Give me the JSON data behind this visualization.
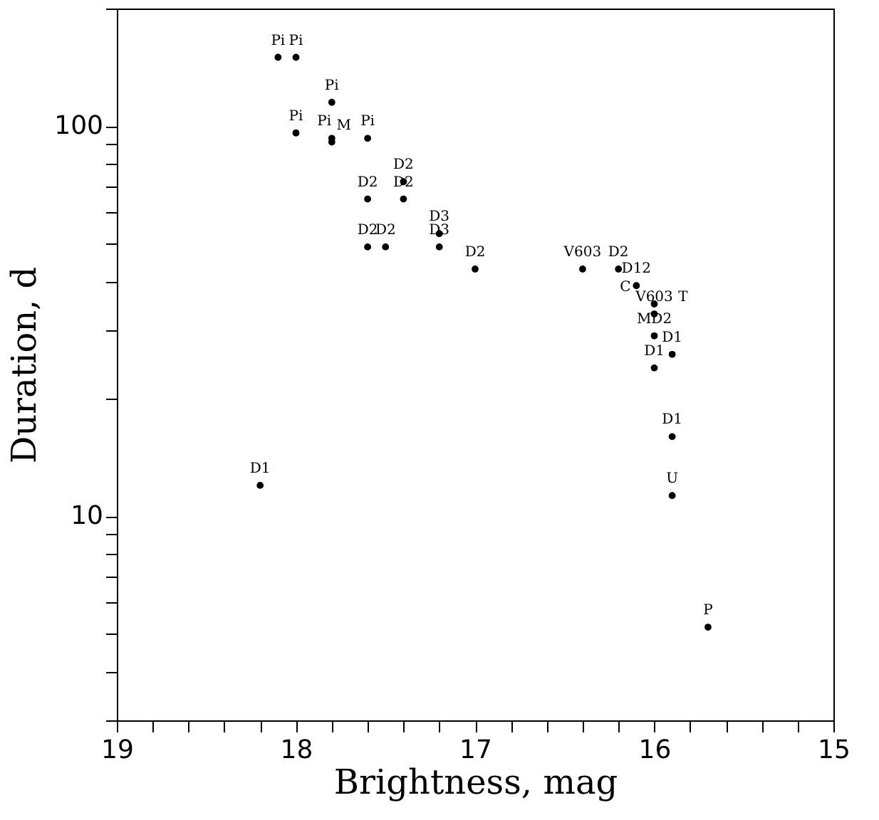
{
  "chart_data": {
    "type": "scatter",
    "xlabel": "Brightness, mag",
    "ylabel": "Duration, d",
    "x": [
      18.1,
      18.0,
      17.8,
      18.0,
      17.8,
      17.8,
      17.6,
      17.6,
      17.4,
      17.4,
      17.2,
      17.2,
      17.6,
      17.5,
      17.0,
      16.4,
      16.2,
      16.1,
      16.0,
      16.0,
      16.0,
      15.9,
      16.0,
      15.9,
      15.9,
      15.7,
      18.2
    ],
    "values": [
      150,
      150,
      115,
      96,
      93,
      91,
      93,
      65,
      72,
      65,
      53,
      49,
      49,
      49,
      43,
      43,
      43,
      39,
      35,
      33,
      29,
      26,
      24,
      16,
      11.3,
      5.2,
      12
    ],
    "annotations": [
      {
        "text": "Pi",
        "x": 18.1,
        "y": 150
      },
      {
        "text": "Pi",
        "x": 18.0,
        "y": 150
      },
      {
        "text": "Pi",
        "x": 17.8,
        "y": 115
      },
      {
        "text": "Pi",
        "x": 18.0,
        "y": 96
      },
      {
        "text": "Pi",
        "x": 17.8,
        "y": 93
      },
      {
        "text": "M",
        "x": 17.8,
        "y": 91
      },
      {
        "text": "Pi",
        "x": 17.6,
        "y": 93
      },
      {
        "text": "D2",
        "x": 17.6,
        "y": 65
      },
      {
        "text": "D2",
        "x": 17.4,
        "y": 72
      },
      {
        "text": "D2",
        "x": 17.4,
        "y": 65
      },
      {
        "text": "D3",
        "x": 17.2,
        "y": 53
      },
      {
        "text": "D3",
        "x": 17.2,
        "y": 49
      },
      {
        "text": "D2",
        "x": 17.6,
        "y": 49
      },
      {
        "text": "D2",
        "x": 17.5,
        "y": 49
      },
      {
        "text": "D2",
        "x": 17.0,
        "y": 43
      },
      {
        "text": "V603",
        "x": 16.4,
        "y": 43
      },
      {
        "text": "D2",
        "x": 16.2,
        "y": 43
      },
      {
        "text": "D12",
        "x": 16.1,
        "y": 39
      },
      {
        "text": "C",
        "x": 16.0,
        "y": 35
      },
      {
        "text": "V603",
        "x": 16.0,
        "y": 33
      },
      {
        "text": "T",
        "x": 16.0,
        "y": 33
      },
      {
        "text": "MD2",
        "x": 16.0,
        "y": 29
      },
      {
        "text": "D1",
        "x": 15.9,
        "y": 26
      },
      {
        "text": "D1",
        "x": 16.0,
        "y": 24
      },
      {
        "text": "D1",
        "x": 15.9,
        "y": 16
      },
      {
        "text": "U",
        "x": 15.9,
        "y": 11.3
      },
      {
        "text": "P",
        "x": 15.7,
        "y": 5.2
      },
      {
        "text": "D1",
        "x": 18.2,
        "y": 12
      }
    ],
    "color": "#000000",
    "marker": "circle",
    "log": "y",
    "grid": false,
    "xlim": [
      19,
      15
    ],
    "xticks": [
      19,
      {
        "value": 18.8,
        "label": null
      },
      {
        "value": 18.6,
        "label": null
      },
      {
        "value": 18.4,
        "label": null
      },
      {
        "value": 18.2,
        "label": null
      },
      18,
      {
        "value": 17.8,
        "label": null
      },
      {
        "value": 17.6,
        "label": null
      },
      {
        "value": 17.4,
        "label": null
      },
      {
        "value": 17.2,
        "label": null
      },
      17,
      {
        "value": 16.8,
        "label": null
      },
      {
        "value": 16.6,
        "label": null
      },
      {
        "value": 16.4,
        "label": null
      },
      {
        "value": 16.2,
        "label": null
      },
      16,
      {
        "value": 15.8,
        "label": null
      },
      {
        "value": 15.6,
        "label": null
      },
      {
        "value": 15.4,
        "label": null
      },
      {
        "value": 15.2,
        "label": null
      },
      15
    ],
    "ylim": [
      3,
      200
    ],
    "yticks": [
      {
        "value": 3,
        "label": null
      },
      {
        "value": 4,
        "label": null
      },
      {
        "value": 5,
        "label": null
      },
      {
        "value": 6,
        "label": null
      },
      {
        "value": 7,
        "label": null
      },
      {
        "value": 8,
        "label": null
      },
      {
        "value": 9,
        "label": null
      },
      10,
      {
        "value": 20,
        "label": null
      },
      {
        "value": 30,
        "label": null
      },
      {
        "value": 40,
        "label": null
      },
      {
        "value": 50,
        "label": null
      },
      {
        "value": 60,
        "label": null
      },
      {
        "value": 70,
        "label": null
      },
      {
        "value": 80,
        "label": null
      },
      {
        "value": 90,
        "label": null
      },
      100,
      {
        "value": 200,
        "label": null
      }
    ]
  }
}
